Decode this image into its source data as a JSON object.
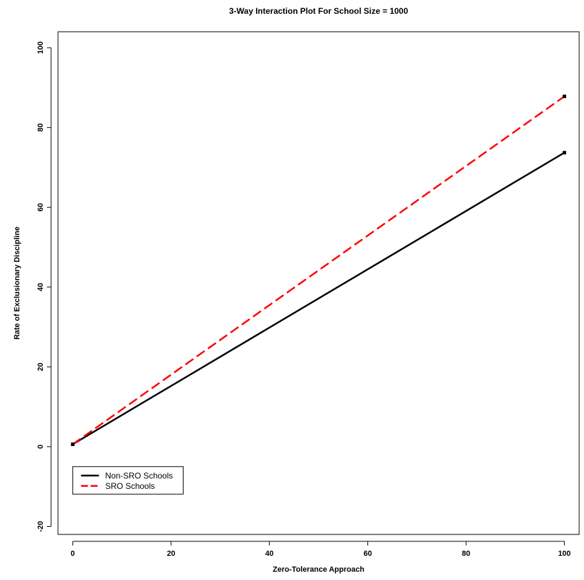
{
  "chart_data": {
    "type": "line",
    "title": "3-Way Interaction Plot For School Size = 1000",
    "xlabel": "Zero-Tolerance Approach",
    "ylabel": "Rate of Exclusionary Discipline",
    "xlim": [
      -3,
      103
    ],
    "ylim": [
      -22,
      104
    ],
    "x_ticks": [
      0,
      20,
      40,
      60,
      80,
      100
    ],
    "y_ticks": [
      -20,
      0,
      20,
      40,
      60,
      80,
      100
    ],
    "grid": false,
    "legend_position": "bottom-left",
    "series": [
      {
        "name": "Non-SRO Schools",
        "color": "#000000",
        "dash": "solid",
        "x": [
          0,
          100
        ],
        "y": [
          0.6,
          73.7
        ]
      },
      {
        "name": "SRO Schools",
        "color": "#ff0000",
        "dash": "dashed",
        "x": [
          0,
          100
        ],
        "y": [
          0.6,
          87.8
        ]
      }
    ]
  }
}
